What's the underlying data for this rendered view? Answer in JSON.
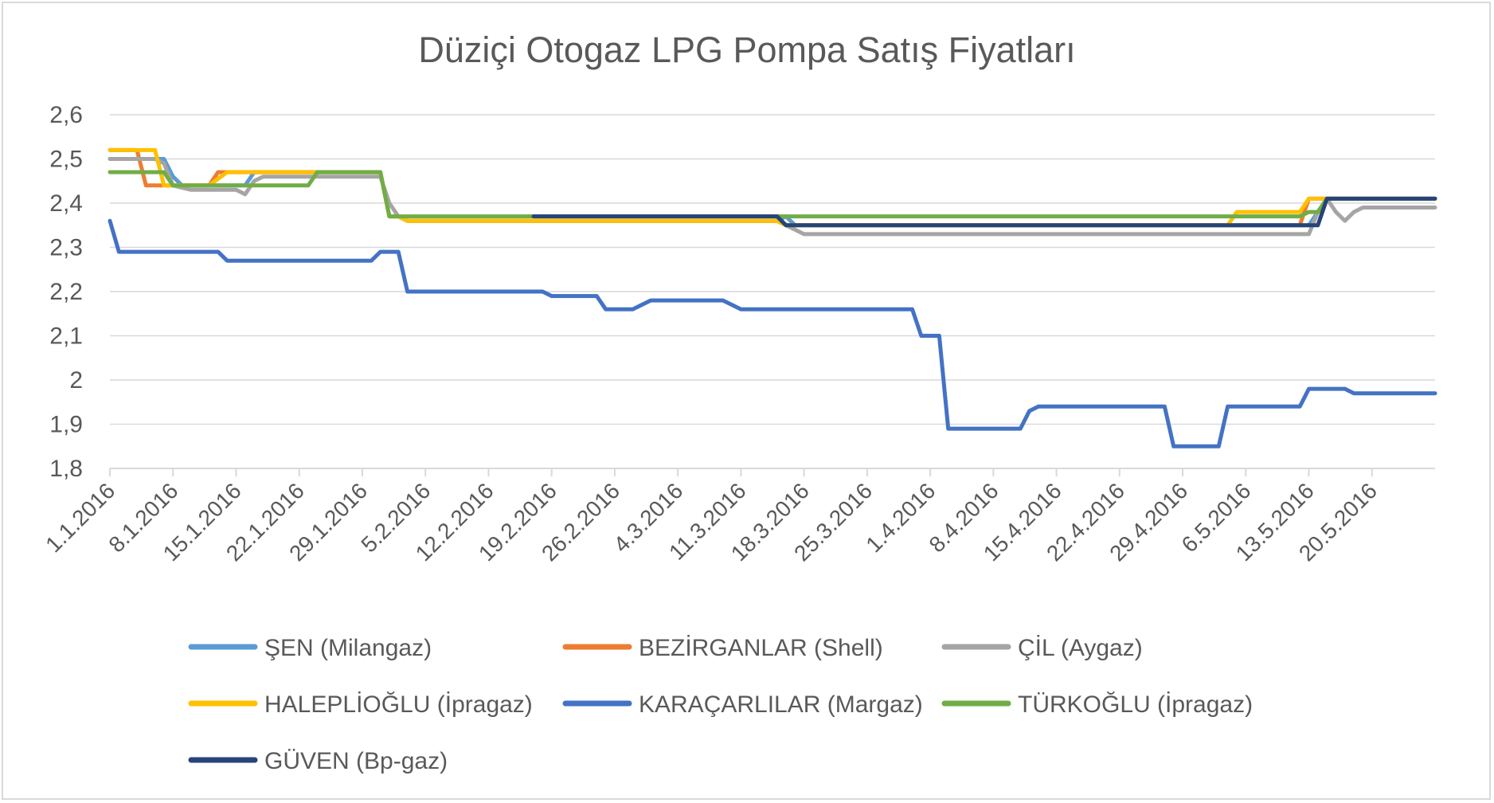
{
  "chart_data": {
    "type": "line",
    "title": "Düziçi Otogaz LPG Pompa Satış Fiyatları",
    "xlabel": "",
    "ylabel": "",
    "ylim": [
      1.8,
      2.6
    ],
    "y_ticks": [
      "2,6",
      "2,5",
      "2,4",
      "2,3",
      "2,2",
      "2,1",
      "2",
      "1,9",
      "1,8"
    ],
    "x_ticks": [
      "1.1.2016",
      "8.1.2016",
      "15.1.2016",
      "22.1.2016",
      "29.1.2016",
      "5.2.2016",
      "12.2.2016",
      "19.2.2016",
      "26.2.2016",
      "4.3.2016",
      "11.3.2016",
      "18.3.2016",
      "25.3.2016",
      "1.4.2016",
      "8.4.2016",
      "15.4.2016",
      "22.4.2016",
      "29.4.2016",
      "6.5.2016",
      "13.5.2016",
      "20.5.2016"
    ],
    "x_range": [
      "1.1.2016",
      "27.5.2016"
    ],
    "grid": true,
    "legend_position": "bottom",
    "series": [
      {
        "name": "ŞEN (Milangaz)",
        "color": "#5b9bd5",
        "points": [
          [
            "1.1.2016",
            2.5
          ],
          [
            "7.1.2016",
            2.5
          ],
          [
            "8.1.2016",
            2.46
          ],
          [
            "9.1.2016",
            2.44
          ],
          [
            "13.1.2016",
            2.44
          ],
          [
            "14.1.2016",
            2.44
          ],
          [
            "16.1.2016",
            2.44
          ],
          [
            "17.1.2016",
            2.47
          ],
          [
            "31.1.2016",
            2.47
          ],
          [
            "1.2.2016",
            2.37
          ],
          [
            "2.2.2016",
            2.37
          ],
          [
            "3.2.2016",
            2.36
          ],
          [
            "15.3.2016",
            2.36
          ],
          [
            "16.3.2016",
            2.37
          ],
          [
            "17.3.2016",
            2.35
          ],
          [
            "26.4.2016",
            2.35
          ],
          [
            "13.5.2016",
            2.35
          ],
          [
            "15.5.2016",
            2.41
          ],
          [
            "27.5.2016",
            2.41
          ]
        ]
      },
      {
        "name": "BEZİRGANLAR (Shell)",
        "color": "#ed7d31",
        "points": [
          [
            "1.1.2016",
            2.52
          ],
          [
            "4.1.2016",
            2.52
          ],
          [
            "5.1.2016",
            2.44
          ],
          [
            "12.1.2016",
            2.44
          ],
          [
            "13.1.2016",
            2.47
          ],
          [
            "31.1.2016",
            2.47
          ],
          [
            "1.2.2016",
            2.37
          ],
          [
            "2.2.2016",
            2.37
          ],
          [
            "3.2.2016",
            2.36
          ],
          [
            "15.3.2016",
            2.36
          ],
          [
            "16.3.2016",
            2.35
          ],
          [
            "3.5.2016",
            2.35
          ],
          [
            "12.5.2016",
            2.35
          ],
          [
            "13.5.2016",
            2.41
          ],
          [
            "27.5.2016",
            2.41
          ]
        ]
      },
      {
        "name": "ÇİL (Aygaz)",
        "color": "#a5a5a5",
        "points": [
          [
            "1.1.2016",
            2.5
          ],
          [
            "6.1.2016",
            2.5
          ],
          [
            "7.1.2016",
            2.49
          ],
          [
            "8.1.2016",
            2.44
          ],
          [
            "10.1.2016",
            2.43
          ],
          [
            "15.1.2016",
            2.43
          ],
          [
            "16.1.2016",
            2.42
          ],
          [
            "17.1.2016",
            2.45
          ],
          [
            "18.1.2016",
            2.46
          ],
          [
            "31.1.2016",
            2.46
          ],
          [
            "1.2.2016",
            2.4
          ],
          [
            "2.2.2016",
            2.37
          ],
          [
            "3.2.2016",
            2.36
          ],
          [
            "15.3.2016",
            2.36
          ],
          [
            "17.3.2016",
            2.34
          ],
          [
            "18.3.2016",
            2.33
          ],
          [
            "13.5.2016",
            2.33
          ],
          [
            "14.5.2016",
            2.38
          ],
          [
            "15.5.2016",
            2.41
          ],
          [
            "16.5.2016",
            2.38
          ],
          [
            "17.5.2016",
            2.36
          ],
          [
            "18.5.2016",
            2.38
          ],
          [
            "19.5.2016",
            2.39
          ],
          [
            "27.5.2016",
            2.39
          ]
        ]
      },
      {
        "name": "HALEPLİOĞLU (İpragaz)",
        "color": "#ffc000",
        "points": [
          [
            "1.1.2016",
            2.52
          ],
          [
            "6.1.2016",
            2.52
          ],
          [
            "7.1.2016",
            2.44
          ],
          [
            "12.1.2016",
            2.44
          ],
          [
            "14.1.2016",
            2.47
          ],
          [
            "31.1.2016",
            2.47
          ],
          [
            "1.2.2016",
            2.37
          ],
          [
            "2.2.2016",
            2.37
          ],
          [
            "3.2.2016",
            2.36
          ],
          [
            "15.3.2016",
            2.36
          ],
          [
            "16.3.2016",
            2.35
          ],
          [
            "4.5.2016",
            2.35
          ],
          [
            "5.5.2016",
            2.38
          ],
          [
            "11.5.2016",
            2.38
          ],
          [
            "12.5.2016",
            2.38
          ],
          [
            "13.5.2016",
            2.41
          ],
          [
            "27.5.2016",
            2.41
          ]
        ]
      },
      {
        "name": "KARAÇARLILAR (Margaz)",
        "color": "#4472c4",
        "points": [
          [
            "1.1.2016",
            2.36
          ],
          [
            "2.1.2016",
            2.29
          ],
          [
            "13.1.2016",
            2.29
          ],
          [
            "14.1.2016",
            2.27
          ],
          [
            "30.1.2016",
            2.27
          ],
          [
            "31.1.2016",
            2.29
          ],
          [
            "2.2.2016",
            2.29
          ],
          [
            "3.2.2016",
            2.2
          ],
          [
            "18.2.2016",
            2.2
          ],
          [
            "19.2.2016",
            2.19
          ],
          [
            "24.2.2016",
            2.19
          ],
          [
            "25.2.2016",
            2.16
          ],
          [
            "28.2.2016",
            2.16
          ],
          [
            "1.3.2016",
            2.18
          ],
          [
            "9.3.2016",
            2.18
          ],
          [
            "11.3.2016",
            2.16
          ],
          [
            "30.3.2016",
            2.16
          ],
          [
            "31.3.2016",
            2.1
          ],
          [
            "2.4.2016",
            2.1
          ],
          [
            "3.4.2016",
            1.89
          ],
          [
            "11.4.2016",
            1.89
          ],
          [
            "12.4.2016",
            1.93
          ],
          [
            "13.4.2016",
            1.94
          ],
          [
            "27.4.2016",
            1.94
          ],
          [
            "28.4.2016",
            1.85
          ],
          [
            "3.5.2016",
            1.85
          ],
          [
            "4.5.2016",
            1.94
          ],
          [
            "12.5.2016",
            1.94
          ],
          [
            "13.5.2016",
            1.98
          ],
          [
            "17.5.2016",
            1.98
          ],
          [
            "18.5.2016",
            1.97
          ],
          [
            "27.5.2016",
            1.97
          ]
        ]
      },
      {
        "name": "TÜRKOĞLU (İpragaz)",
        "color": "#70ad47",
        "points": [
          [
            "1.1.2016",
            2.47
          ],
          [
            "7.1.2016",
            2.47
          ],
          [
            "8.1.2016",
            2.44
          ],
          [
            "18.1.2016",
            2.44
          ],
          [
            "23.1.2016",
            2.44
          ],
          [
            "24.1.2016",
            2.47
          ],
          [
            "31.1.2016",
            2.47
          ],
          [
            "1.2.2016",
            2.37
          ],
          [
            "2.2.2016",
            2.37
          ],
          [
            "12.5.2016",
            2.37
          ],
          [
            "13.5.2016",
            2.38
          ],
          [
            "14.5.2016",
            2.38
          ],
          [
            "15.5.2016",
            2.41
          ],
          [
            "27.5.2016",
            2.41
          ]
        ]
      },
      {
        "name": "GÜVEN (Bp-gaz)",
        "color": "#264478",
        "points": [
          [
            "17.2.2016",
            2.37
          ],
          [
            "15.3.2016",
            2.37
          ],
          [
            "16.3.2016",
            2.35
          ],
          [
            "14.5.2016",
            2.35
          ],
          [
            "15.5.2016",
            2.41
          ],
          [
            "27.5.2016",
            2.41
          ]
        ]
      }
    ]
  }
}
